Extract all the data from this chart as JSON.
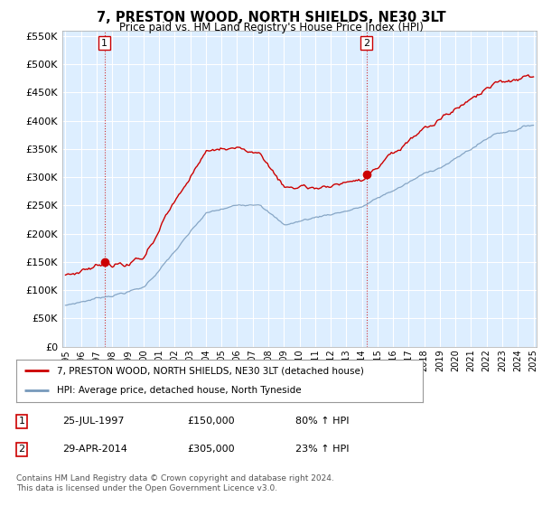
{
  "title": "7, PRESTON WOOD, NORTH SHIELDS, NE30 3LT",
  "subtitle": "Price paid vs. HM Land Registry's House Price Index (HPI)",
  "legend_line1": "7, PRESTON WOOD, NORTH SHIELDS, NE30 3LT (detached house)",
  "legend_line2": "HPI: Average price, detached house, North Tyneside",
  "sale1_date": "25-JUL-1997",
  "sale1_price": 150000,
  "sale1_hpi": "80% ↑ HPI",
  "sale2_date": "29-APR-2014",
  "sale2_price": 305000,
  "sale2_hpi": "23% ↑ HPI",
  "footnote": "Contains HM Land Registry data © Crown copyright and database right 2024.\nThis data is licensed under the Open Government Licence v3.0.",
  "ylim": [
    0,
    560000
  ],
  "yticks": [
    0,
    50000,
    100000,
    150000,
    200000,
    250000,
    300000,
    350000,
    400000,
    450000,
    500000,
    550000
  ],
  "red_color": "#cc0000",
  "blue_color": "#7799bb",
  "chart_bg": "#ddeeff",
  "grid_color": "#ffffff",
  "background_color": "#ffffff"
}
